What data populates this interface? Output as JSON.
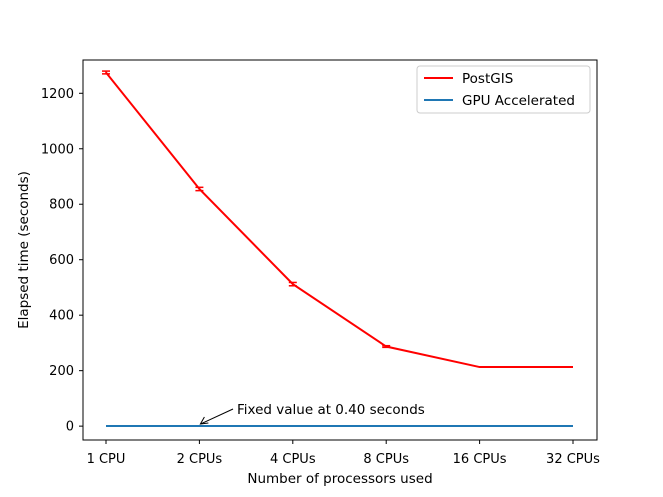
{
  "chart_data": {
    "type": "line",
    "categories": [
      "1 CPU",
      "2 CPUs",
      "4 CPUs",
      "8 CPUs",
      "16 CPUs",
      "32 CPUs"
    ],
    "xlabel": "Number of processors used",
    "ylabel": "Elapsed time (seconds)",
    "ylim": [
      -50,
      1320
    ],
    "yticks": [
      0,
      200,
      400,
      600,
      800,
      1000,
      1200
    ],
    "grid": false,
    "legend_position": "top-right",
    "series": [
      {
        "name": "PostGIS",
        "color": "#ff0000",
        "values": [
          1275,
          855,
          512,
          287,
          213,
          213
        ],
        "error": [
          5,
          6,
          6,
          3,
          0,
          0
        ]
      },
      {
        "name": "GPU Accelerated",
        "color": "#1f77b4",
        "values": [
          0.4,
          0.4,
          0.4,
          0.4,
          0.4,
          0.4
        ]
      }
    ],
    "annotation": {
      "text": "Fixed value at 0.40 seconds",
      "category_index": 1,
      "value": 0.4
    }
  }
}
